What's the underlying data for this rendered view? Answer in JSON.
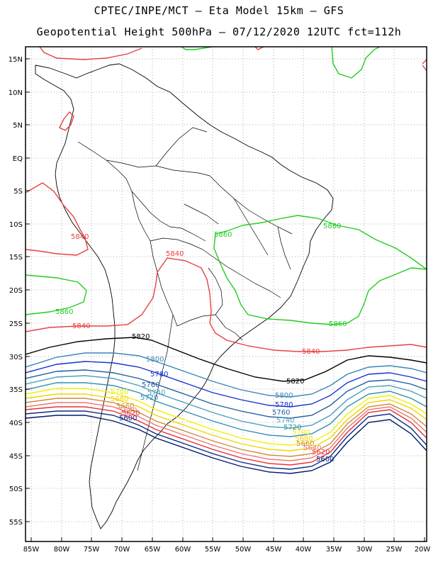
{
  "title_line1": "CPTEC/INPE/MCT  –   Eta Model 15km  –  GFS",
  "title_line2": "Geopotential Height 500hPa  –  07/12/2020 12UTC fct=112h",
  "lat_labels": [
    "15N",
    "10N",
    "5N",
    "EQ",
    "5S",
    "10S",
    "15S",
    "20S",
    "25S",
    "30S",
    "35S",
    "40S",
    "45S",
    "50S",
    "55S"
  ],
  "lon_labels": [
    "85W",
    "80W",
    "75W",
    "70W",
    "65W",
    "60W",
    "55W",
    "50W",
    "45W",
    "40W",
    "35W",
    "30W",
    "25W",
    "20W"
  ],
  "colors": {
    "5580": "#001a66",
    "5600": "#0b2d8a",
    "5620": "#e83030",
    "5640": "#e87878",
    "5660": "#d08a3c",
    "5680": "#f0d400",
    "5700": "#f0f000",
    "5720": "#2f8fb0",
    "5740": "#4a9fc0",
    "5760": "#1f5fa0",
    "5780": "#1533d0",
    "5800": "#3a86b8",
    "5820": "#000000",
    "5840": "#e84040",
    "5860": "#22cc22"
  },
  "contour_labels": [
    {
      "text": "5840",
      "key": "5840"
    },
    {
      "text": "5840",
      "key": "5840"
    },
    {
      "text": "5840",
      "key": "5840"
    },
    {
      "text": "5840",
      "key": "5840"
    },
    {
      "text": "5860",
      "key": "5860"
    },
    {
      "text": "5860",
      "key": "5860"
    },
    {
      "text": "5860",
      "key": "5860"
    },
    {
      "text": "5860",
      "key": "5860"
    },
    {
      "text": "5820",
      "key": "5820"
    },
    {
      "text": "5820",
      "key": "5820"
    },
    {
      "text": "5800",
      "key": "5800"
    },
    {
      "text": "5800",
      "key": "5800"
    },
    {
      "text": "5780",
      "key": "5780"
    },
    {
      "text": "5780",
      "key": "5780"
    },
    {
      "text": "5760",
      "key": "5760"
    },
    {
      "text": "5760",
      "key": "5760"
    },
    {
      "text": "5740",
      "key": "5740"
    },
    {
      "text": "5740",
      "key": "5740"
    },
    {
      "text": "5720",
      "key": "5720"
    },
    {
      "text": "5720",
      "key": "5720"
    },
    {
      "text": "5700",
      "key": "5700"
    },
    {
      "text": "5700",
      "key": "5700"
    },
    {
      "text": "5680",
      "key": "5680"
    },
    {
      "text": "5680",
      "key": "5680"
    },
    {
      "text": "5660",
      "key": "5660"
    },
    {
      "text": "5660",
      "key": "5660"
    },
    {
      "text": "5640",
      "key": "5640"
    },
    {
      "text": "5640",
      "key": "5640"
    },
    {
      "text": "5620",
      "key": "5620"
    },
    {
      "text": "5620",
      "key": "5620"
    },
    {
      "text": "5600",
      "key": "5600"
    },
    {
      "text": "5600",
      "key": "5600"
    }
  ]
}
